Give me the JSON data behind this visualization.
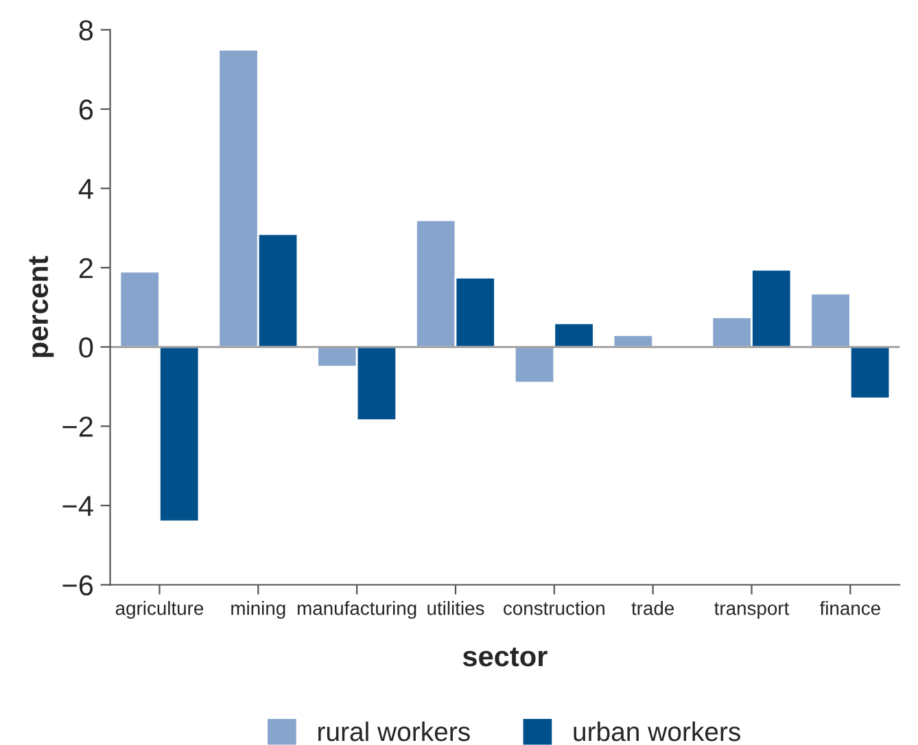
{
  "chart_data": {
    "type": "bar",
    "xlabel": "sector",
    "ylabel": "percent",
    "categories": [
      "agriculture",
      "mining",
      "manufacturing",
      "utilities",
      "construction",
      "trade",
      "transport",
      "finance"
    ],
    "series": [
      {
        "name": "rural workers",
        "color": "#87a5cc",
        "values": [
          1.9,
          7.5,
          -0.5,
          3.2,
          -0.9,
          0.3,
          0.75,
          1.35
        ]
      },
      {
        "name": "urban workers",
        "color": "#00508c",
        "values": [
          -4.4,
          2.85,
          -1.85,
          1.75,
          0.6,
          null,
          1.95,
          -1.3
        ]
      }
    ],
    "ylim": [
      -6,
      8
    ],
    "yticks": [
      {
        "value": -6,
        "label": "−6"
      },
      {
        "value": -4,
        "label": "−4"
      },
      {
        "value": -2,
        "label": "−2"
      },
      0,
      2,
      4,
      6,
      8
    ],
    "ref_lines": [
      {
        "axis": "y",
        "value": 0,
        "color": "#999999"
      }
    ],
    "grid": false,
    "legend": "bottom"
  }
}
